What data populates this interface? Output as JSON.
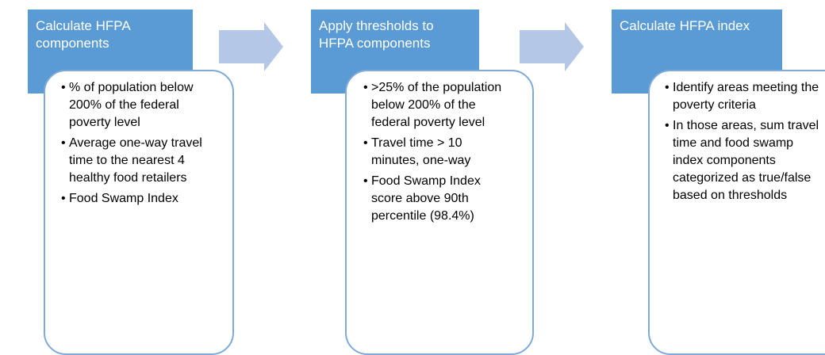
{
  "steps": [
    {
      "title": "Calculate HFPA components",
      "items": [
        "% of population below 200% of the federal poverty level",
        "Average one-way travel time to the nearest 4 healthy food retailers",
        "Food Swamp Index"
      ]
    },
    {
      "title": "Apply thresholds to HFPA components",
      "items": [
        ">25% of the population below 200% of the federal poverty level",
        "Travel time > 10 minutes, one-way",
        "Food Swamp Index score above 90th percentile (98.4%)"
      ]
    },
    {
      "title": "Calculate HFPA index",
      "items": [
        "Identify areas meeting the poverty criteria",
        "In those areas, sum travel time and food swamp index components categorized as true/false based on thresholds"
      ]
    }
  ]
}
